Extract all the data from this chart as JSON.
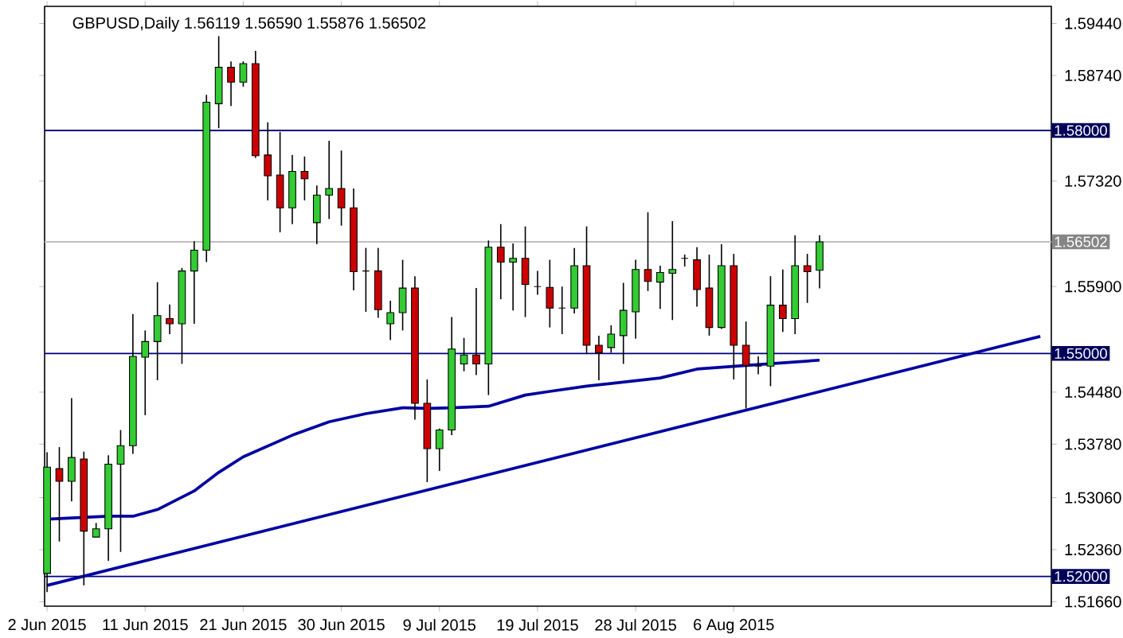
{
  "chart_data": {
    "type": "candlestick",
    "title": "GBPUSD,Daily  1.56119 1.56590 1.55876 1.56502",
    "categories": [
      "2 Jun 2015",
      null,
      null,
      null,
      null,
      null,
      null,
      null,
      "11 Jun 2015",
      null,
      null,
      null,
      null,
      null,
      null,
      null,
      "21 Jun 2015",
      null,
      null,
      null,
      null,
      null,
      null,
      null,
      "30 Jun 2015",
      null,
      null,
      null,
      null,
      null,
      null,
      null,
      "9 Jul 2015",
      null,
      null,
      null,
      null,
      null,
      null,
      null,
      "19 Jul 2015",
      null,
      null,
      null,
      null,
      null,
      null,
      null,
      "28 Jul 2015",
      null,
      null,
      null,
      null,
      null,
      null,
      null,
      "6 Aug 2015",
      null,
      null,
      null,
      null,
      null,
      null,
      null,
      null,
      null,
      null,
      null,
      null,
      null,
      null,
      null,
      null,
      null,
      null,
      null,
      null,
      null,
      null,
      null,
      null,
      null
    ],
    "ohlc": [
      [
        1.5204,
        1.5367,
        1.5179,
        1.5347
      ],
      [
        1.5345,
        1.5374,
        1.5247,
        1.5328
      ],
      [
        1.5328,
        1.544,
        1.5301,
        1.536
      ],
      [
        1.5358,
        1.5368,
        1.5188,
        1.5261
      ],
      [
        1.5253,
        1.5272,
        1.5253,
        1.5264
      ],
      [
        1.5264,
        1.5363,
        1.5221,
        1.5351
      ],
      [
        1.5351,
        1.5397,
        1.5233,
        1.5376
      ],
      [
        1.5376,
        1.5553,
        1.5365,
        1.5496
      ],
      [
        1.5495,
        1.5531,
        1.5417,
        1.5516
      ],
      [
        1.5516,
        1.5596,
        1.5464,
        1.5551
      ],
      [
        1.5547,
        1.5566,
        1.5526,
        1.554
      ],
      [
        1.554,
        1.5615,
        1.5486,
        1.5611
      ],
      [
        1.5611,
        1.5651,
        1.554,
        1.5639
      ],
      [
        1.5639,
        1.5848,
        1.5623,
        1.5838
      ],
      [
        1.5836,
        1.5927,
        1.5803,
        1.5885
      ],
      [
        1.5885,
        1.5893,
        1.5833,
        1.5865
      ],
      [
        1.5865,
        1.5893,
        1.5859,
        1.589
      ],
      [
        1.589,
        1.5907,
        1.5763,
        1.5766
      ],
      [
        1.5767,
        1.5811,
        1.5706,
        1.5739
      ],
      [
        1.574,
        1.5798,
        1.5663,
        1.5696
      ],
      [
        1.5696,
        1.5767,
        1.5674,
        1.5745
      ],
      [
        1.5745,
        1.5765,
        1.5706,
        1.5735
      ],
      [
        1.5676,
        1.5726,
        1.5647,
        1.5713
      ],
      [
        1.5713,
        1.5786,
        1.5681,
        1.5722
      ],
      [
        1.5722,
        1.5773,
        1.5672,
        1.5696
      ],
      [
        1.5696,
        1.5722,
        1.5585,
        1.561
      ],
      [
        1.5611,
        1.5642,
        1.5556,
        1.5611
      ],
      [
        1.5611,
        1.5642,
        1.5548,
        1.5559
      ],
      [
        1.554,
        1.5571,
        1.5518,
        1.5555
      ],
      [
        1.5555,
        1.5626,
        1.5531,
        1.5588
      ],
      [
        1.5588,
        1.5604,
        1.5411,
        1.5433
      ],
      [
        1.5433,
        1.5465,
        1.5327,
        1.5372
      ],
      [
        1.5372,
        1.5399,
        1.5342,
        1.5397
      ],
      [
        1.5397,
        1.5549,
        1.539,
        1.5506
      ],
      [
        1.5486,
        1.5521,
        1.5476,
        1.5498
      ],
      [
        1.5498,
        1.5588,
        1.5471,
        1.5486
      ],
      [
        1.5486,
        1.5652,
        1.5444,
        1.5643
      ],
      [
        1.5643,
        1.5674,
        1.5573,
        1.5623
      ],
      [
        1.5623,
        1.5648,
        1.5558,
        1.5628
      ],
      [
        1.5628,
        1.5671,
        1.5549,
        1.5593
      ],
      [
        1.559,
        1.5611,
        1.5579,
        1.559
      ],
      [
        1.5589,
        1.5626,
        1.5535,
        1.5561
      ],
      [
        1.5561,
        1.559,
        1.5526,
        1.5561
      ],
      [
        1.5561,
        1.5642,
        1.5554,
        1.5618
      ],
      [
        1.5618,
        1.5671,
        1.5499,
        1.5511
      ],
      [
        1.5511,
        1.5524,
        1.5464,
        1.5501
      ],
      [
        1.5508,
        1.5538,
        1.5501,
        1.5526
      ],
      [
        1.5524,
        1.5595,
        1.5486,
        1.5558
      ],
      [
        1.5556,
        1.5626,
        1.552,
        1.5613
      ],
      [
        1.5613,
        1.569,
        1.5584,
        1.5597
      ],
      [
        1.5596,
        1.5618,
        1.556,
        1.5609
      ],
      [
        1.5608,
        1.5678,
        1.5545,
        1.5613
      ],
      [
        1.5628,
        1.5633,
        1.5617,
        1.5628
      ],
      [
        1.5626,
        1.5643,
        1.5563,
        1.5586
      ],
      [
        1.5588,
        1.5633,
        1.5524,
        1.5535
      ],
      [
        1.5535,
        1.5647,
        1.5533,
        1.5618
      ],
      [
        1.5618,
        1.5634,
        1.5465,
        1.5511
      ],
      [
        1.5511,
        1.5543,
        1.5426,
        1.5484
      ],
      [
        1.5483,
        1.5496,
        1.5472,
        1.5483
      ],
      [
        1.5483,
        1.5604,
        1.5456,
        1.5565
      ],
      [
        1.5565,
        1.5613,
        1.5529,
        1.5547
      ],
      [
        1.5547,
        1.5659,
        1.5526,
        1.5618
      ],
      [
        1.5618,
        1.5634,
        1.5568,
        1.561
      ],
      [
        1.56119,
        1.5659,
        1.55876,
        1.56502
      ],
      null,
      null,
      null,
      null,
      null,
      null,
      null,
      null,
      null,
      null,
      null,
      null,
      null,
      null,
      null,
      null,
      null,
      null
    ],
    "series": [
      {
        "type": "line",
        "color": "#0000a0",
        "values": [
          1.5277,
          null,
          null,
          null,
          null,
          1.5281,
          null,
          1.5281,
          null,
          1.529,
          null,
          null,
          1.5315,
          null,
          1.534,
          null,
          1.5361,
          null,
          null,
          null,
          1.539,
          null,
          null,
          1.5408,
          null,
          null,
          1.5419,
          null,
          null,
          1.5427,
          null,
          1.5426,
          null,
          1.5427,
          null,
          null,
          1.5429,
          null,
          null,
          1.5444,
          null,
          1.5449,
          null,
          null,
          1.5456,
          null,
          null,
          null,
          null,
          null,
          1.5467,
          null,
          null,
          1.5479,
          null,
          null,
          null,
          1.5484,
          null,
          null,
          null,
          null,
          null,
          1.5491,
          null,
          null,
          null,
          null,
          null,
          null,
          null,
          null,
          null,
          null,
          null,
          null,
          null,
          null,
          null,
          null,
          null,
          null
        ]
      },
      {
        "type": "line",
        "color": "#0000a0",
        "values": [
          1.5188,
          null,
          null,
          null,
          null,
          null,
          null,
          null,
          null,
          null,
          null,
          null,
          null,
          null,
          null,
          null,
          null,
          null,
          null,
          null,
          null,
          null,
          null,
          null,
          null,
          null,
          null,
          null,
          null,
          null,
          null,
          null,
          null,
          null,
          null,
          null,
          null,
          null,
          null,
          null,
          null,
          null,
          null,
          null,
          null,
          null,
          null,
          null,
          null,
          null,
          null,
          null,
          null,
          null,
          null,
          null,
          null,
          null,
          null,
          null,
          null,
          null,
          null,
          null,
          null,
          null,
          null,
          null,
          null,
          null,
          null,
          null,
          null,
          null,
          null,
          null,
          null,
          null,
          null,
          null,
          null,
          1.5523
        ]
      }
    ],
    "ylim": [
      1.516,
      1.5967
    ],
    "yticks": [
      {
        "value": 1.5944,
        "label": "1.59440"
      },
      {
        "value": 1.5874,
        "label": "1.58740"
      },
      {
        "value": 1.5732,
        "label": "1.57320"
      },
      {
        "value": 1.559,
        "label": "1.55900"
      },
      {
        "value": 1.5448,
        "label": "1.54480"
      },
      {
        "value": 1.5378,
        "label": "1.53780"
      },
      {
        "value": 1.5306,
        "label": "1.53060"
      },
      {
        "value": 1.5236,
        "label": "1.52360"
      },
      {
        "value": 1.5166,
        "label": "1.51660"
      }
    ],
    "ref_lines": [
      {
        "axis": "y",
        "value": 1.58,
        "label": "1.58000",
        "color": "#000080"
      },
      {
        "axis": "y",
        "value": 1.55,
        "label": "1.55000",
        "color": "#000080"
      },
      {
        "axis": "y",
        "value": 1.52,
        "label": "1.52000",
        "color": "#000080"
      },
      {
        "axis": "y",
        "value": 1.56502,
        "label": "1.56502",
        "color": "#c0c0c0"
      }
    ],
    "grid": false
  }
}
